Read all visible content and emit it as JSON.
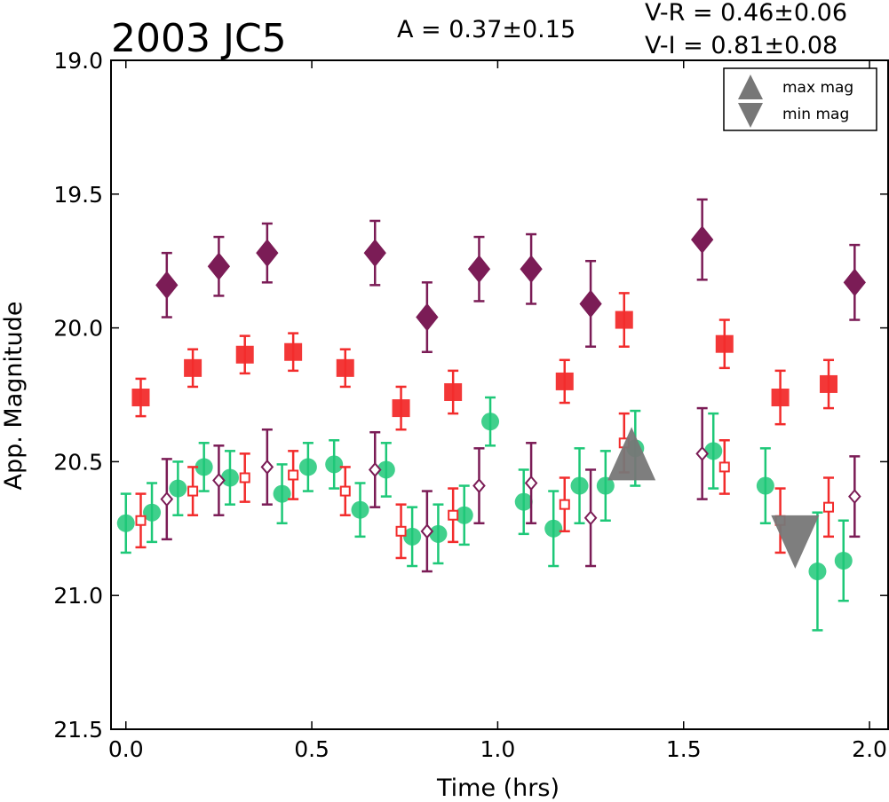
{
  "header": {
    "title": "2003 JC5",
    "amplitude": "A  = 0.37±0.15",
    "vr": "V-R = 0.46±0.06",
    "vi": "V-I  = 0.81±0.08"
  },
  "colors": {
    "purple": "#7b1c56",
    "red": "#f22c2c",
    "green": "#1ec878",
    "marker_gray": "#777777"
  },
  "chart_data": {
    "type": "scatter",
    "title": "2003 JC5",
    "xlabel": "Time (hrs)",
    "ylabel": "App. Magnitude",
    "xlim": [
      -0.04,
      2.05
    ],
    "ylim": [
      21.5,
      19.0
    ],
    "y_inverted": true,
    "x_ticks": [
      "0.0",
      "0.5",
      "1.0",
      "1.5",
      "2.0"
    ],
    "y_ticks": [
      "19.0",
      "19.5",
      "20.0",
      "20.5",
      "21.0",
      "21.5"
    ],
    "grid": false,
    "legend": {
      "placement": "top-right",
      "entries": [
        {
          "label": "max mag",
          "marker": "triangle-up",
          "color": "#777777"
        },
        {
          "label": "min mag",
          "marker": "triangle-down",
          "color": "#777777"
        }
      ]
    },
    "series": [
      {
        "marker": "diamond-filled",
        "color": "#7b1c56",
        "points": [
          {
            "x": 0.11,
            "y": 19.84,
            "err": 0.12
          },
          {
            "x": 0.25,
            "y": 19.77,
            "err": 0.11
          },
          {
            "x": 0.38,
            "y": 19.72,
            "err": 0.11
          },
          {
            "x": 0.67,
            "y": 19.72,
            "err": 0.12
          },
          {
            "x": 0.81,
            "y": 19.96,
            "err": 0.13
          },
          {
            "x": 0.95,
            "y": 19.78,
            "err": 0.12
          },
          {
            "x": 1.09,
            "y": 19.78,
            "err": 0.13
          },
          {
            "x": 1.25,
            "y": 19.91,
            "err": 0.16
          },
          {
            "x": 1.55,
            "y": 19.67,
            "err": 0.15
          },
          {
            "x": 1.96,
            "y": 19.83,
            "err": 0.14
          }
        ]
      },
      {
        "marker": "square-filled",
        "color": "#f22c2c",
        "points": [
          {
            "x": 0.04,
            "y": 20.26,
            "err": 0.07
          },
          {
            "x": 0.18,
            "y": 20.15,
            "err": 0.07
          },
          {
            "x": 0.32,
            "y": 20.1,
            "err": 0.07
          },
          {
            "x": 0.45,
            "y": 20.09,
            "err": 0.07
          },
          {
            "x": 0.59,
            "y": 20.15,
            "err": 0.07
          },
          {
            "x": 0.74,
            "y": 20.3,
            "err": 0.08
          },
          {
            "x": 0.88,
            "y": 20.24,
            "err": 0.08
          },
          {
            "x": 1.18,
            "y": 20.2,
            "err": 0.08
          },
          {
            "x": 1.34,
            "y": 19.97,
            "err": 0.1
          },
          {
            "x": 1.61,
            "y": 20.06,
            "err": 0.09
          },
          {
            "x": 1.76,
            "y": 20.26,
            "err": 0.1
          },
          {
            "x": 1.89,
            "y": 20.21,
            "err": 0.09
          }
        ]
      },
      {
        "marker": "circle-filled",
        "color": "#1ec878",
        "points": [
          {
            "x": 0.0,
            "y": 20.73,
            "err": 0.11
          },
          {
            "x": 0.07,
            "y": 20.69,
            "err": 0.11
          },
          {
            "x": 0.14,
            "y": 20.6,
            "err": 0.1
          },
          {
            "x": 0.21,
            "y": 20.52,
            "err": 0.09
          },
          {
            "x": 0.28,
            "y": 20.56,
            "err": 0.1
          },
          {
            "x": 0.42,
            "y": 20.62,
            "err": 0.11
          },
          {
            "x": 0.49,
            "y": 20.52,
            "err": 0.09
          },
          {
            "x": 0.56,
            "y": 20.51,
            "err": 0.09
          },
          {
            "x": 0.63,
            "y": 20.68,
            "err": 0.1
          },
          {
            "x": 0.7,
            "y": 20.53,
            "err": 0.1
          },
          {
            "x": 0.77,
            "y": 20.78,
            "err": 0.11
          },
          {
            "x": 0.84,
            "y": 20.77,
            "err": 0.11
          },
          {
            "x": 0.91,
            "y": 20.7,
            "err": 0.11
          },
          {
            "x": 0.98,
            "y": 20.35,
            "err": 0.09
          },
          {
            "x": 1.07,
            "y": 20.65,
            "err": 0.12
          },
          {
            "x": 1.15,
            "y": 20.75,
            "err": 0.14
          },
          {
            "x": 1.22,
            "y": 20.59,
            "err": 0.14
          },
          {
            "x": 1.29,
            "y": 20.59,
            "err": 0.13
          },
          {
            "x": 1.37,
            "y": 20.45,
            "err": 0.14
          },
          {
            "x": 1.58,
            "y": 20.46,
            "err": 0.14
          },
          {
            "x": 1.72,
            "y": 20.59,
            "err": 0.14
          },
          {
            "x": 1.86,
            "y": 20.91,
            "err": 0.22
          },
          {
            "x": 1.93,
            "y": 20.87,
            "err": 0.15
          }
        ]
      },
      {
        "marker": "diamond-open",
        "color": "#7b1c56",
        "points": [
          {
            "x": 0.11,
            "y": 20.64,
            "err": 0.15
          },
          {
            "x": 0.25,
            "y": 20.57,
            "err": 0.13
          },
          {
            "x": 0.38,
            "y": 20.52,
            "err": 0.14
          },
          {
            "x": 0.67,
            "y": 20.53,
            "err": 0.14
          },
          {
            "x": 0.81,
            "y": 20.76,
            "err": 0.15
          },
          {
            "x": 0.95,
            "y": 20.59,
            "err": 0.14
          },
          {
            "x": 1.09,
            "y": 20.58,
            "err": 0.15
          },
          {
            "x": 1.25,
            "y": 20.71,
            "err": 0.18
          },
          {
            "x": 1.55,
            "y": 20.47,
            "err": 0.17
          },
          {
            "x": 1.96,
            "y": 20.63,
            "err": 0.15
          }
        ]
      },
      {
        "marker": "square-open",
        "color": "#f22c2c",
        "points": [
          {
            "x": 0.04,
            "y": 20.72,
            "err": 0.1
          },
          {
            "x": 0.18,
            "y": 20.61,
            "err": 0.09
          },
          {
            "x": 0.32,
            "y": 20.56,
            "err": 0.09
          },
          {
            "x": 0.45,
            "y": 20.55,
            "err": 0.09
          },
          {
            "x": 0.59,
            "y": 20.61,
            "err": 0.09
          },
          {
            "x": 0.74,
            "y": 20.76,
            "err": 0.1
          },
          {
            "x": 0.88,
            "y": 20.7,
            "err": 0.1
          },
          {
            "x": 1.18,
            "y": 20.66,
            "err": 0.1
          },
          {
            "x": 1.34,
            "y": 20.43,
            "err": 0.11
          },
          {
            "x": 1.61,
            "y": 20.52,
            "err": 0.1
          },
          {
            "x": 1.76,
            "y": 20.72,
            "err": 0.12
          },
          {
            "x": 1.89,
            "y": 20.67,
            "err": 0.11
          }
        ]
      }
    ],
    "annotations": [
      {
        "marker": "triangle-up",
        "color": "#777777",
        "x": 1.36,
        "y": 20.47,
        "label": "max mag"
      },
      {
        "marker": "triangle-down",
        "color": "#777777",
        "x": 1.8,
        "y": 20.8,
        "label": "min mag"
      }
    ]
  }
}
